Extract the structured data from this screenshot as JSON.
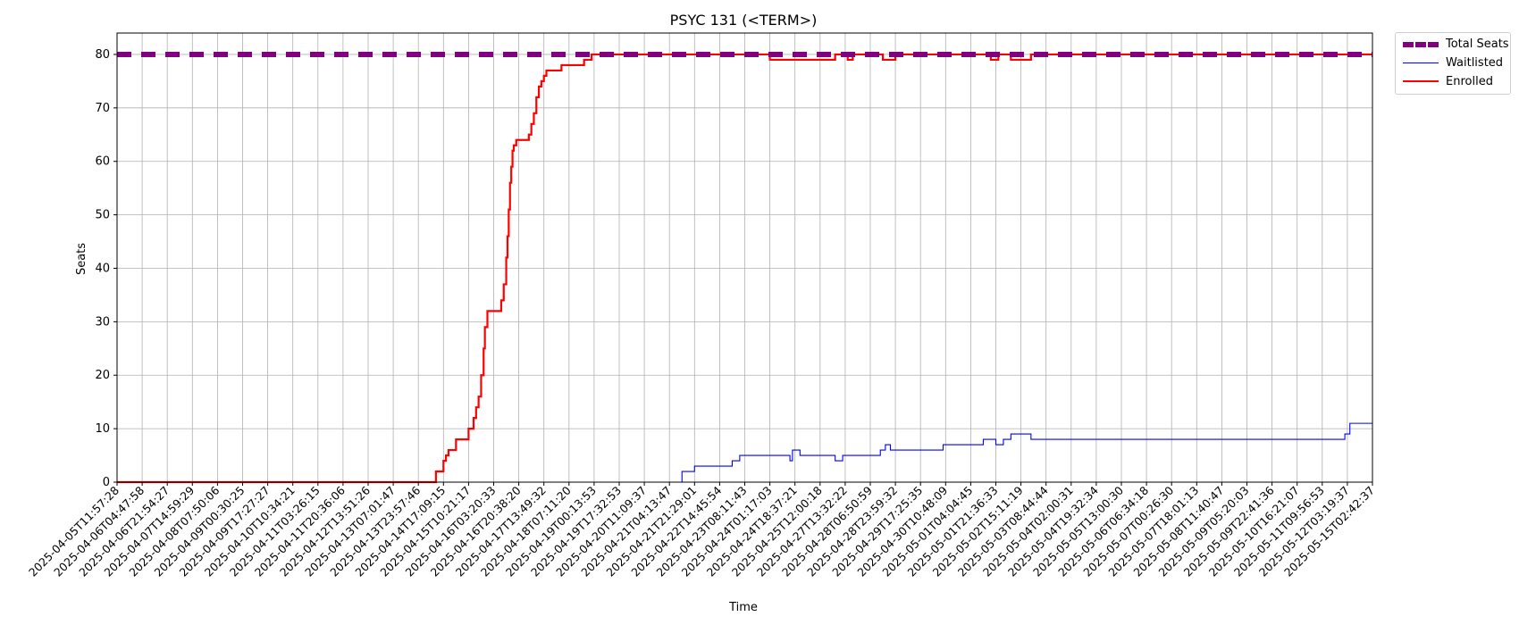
{
  "chart_data": {
    "type": "line",
    "title": "PSYC 131 (<TERM>)",
    "xlabel": "Time",
    "ylabel": "Seats",
    "ylim": [
      0,
      84
    ],
    "yticks": [
      0,
      10,
      20,
      30,
      40,
      50,
      60,
      70,
      80
    ],
    "grid": true,
    "legend_position": "outside-top-right",
    "x_tick_labels": [
      "2025-04-05T11:57:28",
      "2025-04-06T04:47:58",
      "2025-04-06T21:54:27",
      "2025-04-07T14:59:29",
      "2025-04-08T07:50:06",
      "2025-04-09T00:30:25",
      "2025-04-09T17:27:27",
      "2025-04-10T10:34:21",
      "2025-04-11T03:26:15",
      "2025-04-11T20:36:06",
      "2025-04-12T13:51:26",
      "2025-04-13T07:01:47",
      "2025-04-13T23:57:46",
      "2025-04-14T17:09:15",
      "2025-04-15T10:21:17",
      "2025-04-16T03:20:33",
      "2025-04-16T20:38:20",
      "2025-04-17T13:49:32",
      "2025-04-18T07:11:20",
      "2025-04-19T00:13:53",
      "2025-04-19T17:32:53",
      "2025-04-20T11:09:37",
      "2025-04-21T04:13:47",
      "2025-04-21T21:29:01",
      "2025-04-22T14:45:54",
      "2025-04-23T08:11:43",
      "2025-04-24T01:17:03",
      "2025-04-24T18:37:21",
      "2025-04-25T12:00:18",
      "2025-04-27T13:32:22",
      "2025-04-28T06:50:59",
      "2025-04-28T23:59:32",
      "2025-04-29T17:25:35",
      "2025-04-30T10:48:09",
      "2025-05-01T04:04:45",
      "2025-05-01T21:36:33",
      "2025-05-02T15:11:19",
      "2025-05-03T08:44:44",
      "2025-05-04T02:00:31",
      "2025-05-04T19:32:34",
      "2025-05-05T13:00:30",
      "2025-05-06T06:34:18",
      "2025-05-07T00:26:30",
      "2025-05-07T18:01:13",
      "2025-05-08T11:40:47",
      "2025-05-09T05:20:03",
      "2025-05-09T22:41:36",
      "2025-05-10T16:21:07",
      "2025-05-11T09:56:53",
      "2025-05-12T03:19:37",
      "2025-05-15T02:42:37"
    ],
    "series": [
      {
        "name": "Total Seats",
        "color": "#800080",
        "style": "dashed",
        "points": [
          [
            0,
            80
          ],
          [
            50,
            80
          ]
        ]
      },
      {
        "name": "Waitlisted",
        "color": "#0000ff",
        "style": "step",
        "points": [
          [
            0,
            0
          ],
          [
            22.5,
            0
          ],
          [
            22.5,
            2
          ],
          [
            23,
            2
          ],
          [
            23,
            3
          ],
          [
            24.5,
            3
          ],
          [
            24.5,
            4
          ],
          [
            24.8,
            4
          ],
          [
            24.8,
            5
          ],
          [
            26.8,
            5
          ],
          [
            26.8,
            4
          ],
          [
            26.9,
            4
          ],
          [
            26.9,
            6
          ],
          [
            27.2,
            6
          ],
          [
            27.2,
            5
          ],
          [
            28.6,
            5
          ],
          [
            28.6,
            4
          ],
          [
            28.9,
            4
          ],
          [
            28.9,
            5
          ],
          [
            30.4,
            5
          ],
          [
            30.4,
            6
          ],
          [
            30.6,
            6
          ],
          [
            30.6,
            7
          ],
          [
            30.8,
            7
          ],
          [
            30.8,
            6
          ],
          [
            32.9,
            6
          ],
          [
            32.9,
            7
          ],
          [
            34.5,
            7
          ],
          [
            34.5,
            8
          ],
          [
            35,
            8
          ],
          [
            35,
            7
          ],
          [
            35.3,
            7
          ],
          [
            35.3,
            8
          ],
          [
            35.6,
            8
          ],
          [
            35.6,
            9
          ],
          [
            36.4,
            9
          ],
          [
            36.4,
            8
          ],
          [
            48.9,
            8
          ],
          [
            48.9,
            9
          ],
          [
            49.1,
            9
          ],
          [
            49.1,
            11
          ],
          [
            50,
            11
          ]
        ]
      },
      {
        "name": "Enrolled",
        "color": "#ff0000",
        "style": "step",
        "points": [
          [
            0,
            0
          ],
          [
            12.7,
            0
          ],
          [
            12.7,
            2
          ],
          [
            13,
            2
          ],
          [
            13,
            4
          ],
          [
            13.1,
            4
          ],
          [
            13.1,
            5
          ],
          [
            13.2,
            5
          ],
          [
            13.2,
            6
          ],
          [
            13.5,
            6
          ],
          [
            13.5,
            8
          ],
          [
            14,
            8
          ],
          [
            14,
            10
          ],
          [
            14.2,
            10
          ],
          [
            14.2,
            12
          ],
          [
            14.3,
            12
          ],
          [
            14.3,
            14
          ],
          [
            14.4,
            14
          ],
          [
            14.4,
            16
          ],
          [
            14.5,
            16
          ],
          [
            14.5,
            20
          ],
          [
            14.6,
            20
          ],
          [
            14.6,
            25
          ],
          [
            14.65,
            25
          ],
          [
            14.65,
            29
          ],
          [
            14.75,
            29
          ],
          [
            14.75,
            32
          ],
          [
            15.3,
            32
          ],
          [
            15.3,
            34
          ],
          [
            15.4,
            34
          ],
          [
            15.4,
            37
          ],
          [
            15.5,
            37
          ],
          [
            15.5,
            42
          ],
          [
            15.55,
            42
          ],
          [
            15.55,
            46
          ],
          [
            15.6,
            46
          ],
          [
            15.6,
            51
          ],
          [
            15.65,
            51
          ],
          [
            15.65,
            56
          ],
          [
            15.7,
            56
          ],
          [
            15.7,
            59
          ],
          [
            15.75,
            59
          ],
          [
            15.75,
            62
          ],
          [
            15.8,
            62
          ],
          [
            15.8,
            63
          ],
          [
            15.9,
            63
          ],
          [
            15.9,
            64
          ],
          [
            16.4,
            64
          ],
          [
            16.4,
            65
          ],
          [
            16.5,
            65
          ],
          [
            16.5,
            67
          ],
          [
            16.6,
            67
          ],
          [
            16.6,
            69
          ],
          [
            16.7,
            69
          ],
          [
            16.7,
            72
          ],
          [
            16.8,
            72
          ],
          [
            16.8,
            74
          ],
          [
            16.9,
            74
          ],
          [
            16.9,
            75
          ],
          [
            17,
            75
          ],
          [
            17,
            76
          ],
          [
            17.1,
            76
          ],
          [
            17.1,
            77
          ],
          [
            17.7,
            77
          ],
          [
            17.7,
            78
          ],
          [
            18.6,
            78
          ],
          [
            18.6,
            79
          ],
          [
            18.9,
            79
          ],
          [
            18.9,
            80
          ],
          [
            26,
            80
          ],
          [
            26,
            79
          ],
          [
            28.6,
            79
          ],
          [
            28.6,
            80
          ],
          [
            29.1,
            80
          ],
          [
            29.1,
            79
          ],
          [
            29.3,
            79
          ],
          [
            29.3,
            80
          ],
          [
            30.5,
            80
          ],
          [
            30.5,
            79
          ],
          [
            31,
            79
          ],
          [
            31,
            80
          ],
          [
            34.8,
            80
          ],
          [
            34.8,
            79
          ],
          [
            35.1,
            79
          ],
          [
            35.1,
            80
          ],
          [
            35.6,
            80
          ],
          [
            35.6,
            79
          ],
          [
            36.4,
            79
          ],
          [
            36.4,
            80
          ],
          [
            50,
            80
          ]
        ]
      }
    ]
  }
}
